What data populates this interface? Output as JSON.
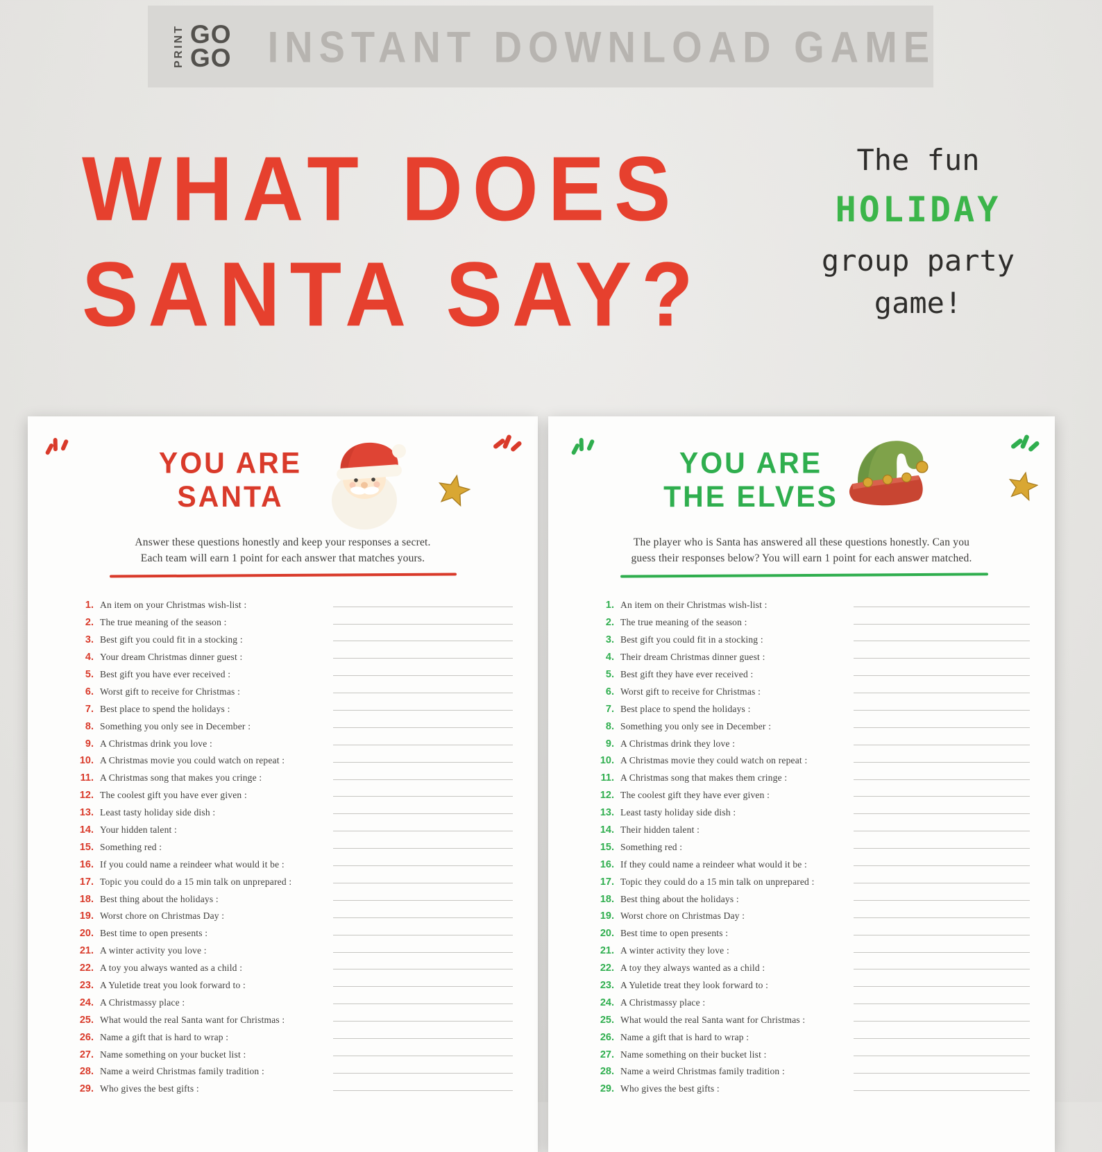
{
  "banner": {
    "logo_print": "PRINT",
    "logo_go_top": "GO",
    "logo_go_bottom": "GO",
    "title": "INSTANT DOWNLOAD GAME"
  },
  "hero": {
    "title_line1": "WHAT DOES",
    "title_line2": "SANTA SAY?",
    "tagline_line1": "The fun",
    "tagline_line2": "HOLIDAY",
    "tagline_line3": "group party",
    "tagline_line4": "game!"
  },
  "colors": {
    "red": "#e6402e",
    "green": "#3cb54a",
    "banner_text": "#b7b4b0",
    "gold": "#d9a733",
    "dark": "#2e2d2b"
  },
  "pages": [
    {
      "title_line1": "YOU ARE",
      "title_line2": "SANTA",
      "accent": "#d93a2a",
      "instructions_line1": "Answer these questions honestly and keep your responses a secret.",
      "instructions_line2": "Each team will earn 1 point for each answer that matches yours.",
      "questions": [
        "An item on your Christmas wish-list :",
        "The true meaning of the season :",
        "Best gift you could fit in a stocking :",
        "Your dream Christmas dinner guest :",
        "Best gift you have ever received :",
        "Worst gift to receive for Christmas :",
        "Best place to spend the holidays :",
        "Something you only see in December :",
        "A Christmas drink you love :",
        "A Christmas movie you could watch on repeat :",
        "A Christmas song that makes you cringe :",
        "The coolest gift you have ever given :",
        "Least tasty holiday side dish :",
        "Your hidden talent :",
        "Something red :",
        "If you could name a reindeer what would it be :",
        "Topic you could do a 15 min talk on unprepared :",
        "Best thing about the holidays :",
        "Worst chore on Christmas Day :",
        "Best time to open presents :",
        "A winter activity you love :",
        "A toy you always wanted as a child :",
        "A Yuletide treat you look forward to :",
        "A Christmassy place :",
        "What would the real Santa want for Christmas :",
        "Name a gift that is hard to wrap :",
        "Name something on your bucket list :",
        "Name a weird Christmas family tradition :",
        "Who gives the best gifts :"
      ]
    },
    {
      "title_line1": "YOU ARE",
      "title_line2": "THE ELVES",
      "accent": "#2fae4e",
      "instructions_line1": "The player who is Santa has answered all these questions honestly. Can you",
      "instructions_line2": "guess their responses below? You will earn 1 point for each answer matched.",
      "questions": [
        "An item on their Christmas wish-list :",
        "The true meaning of the season :",
        "Best gift you could fit in a stocking :",
        "Their dream Christmas dinner guest :",
        "Best gift they have ever received :",
        "Worst gift to receive for Christmas :",
        "Best place to spend the holidays :",
        "Something you only see in December :",
        "A Christmas drink they love :",
        "A Christmas movie they could watch on repeat :",
        "A Christmas song that makes them cringe :",
        "The coolest gift they have ever given :",
        "Least tasty holiday side dish :",
        "Their hidden talent :",
        "Something red :",
        "If they could name a reindeer what would it be :",
        "Topic they could do a 15 min talk on unprepared :",
        "Best thing about the holidays :",
        "Worst chore on Christmas Day :",
        "Best time to open presents :",
        "A winter activity they love :",
        "A toy they always wanted as a child :",
        "A Yuletide treat they look forward to :",
        "A Christmassy place :",
        "What would the real Santa want for Christmas :",
        "Name a gift that is hard to wrap :",
        "Name something on their bucket list :",
        "Name a weird Christmas family tradition :",
        "Who gives the best gifts :"
      ]
    }
  ]
}
